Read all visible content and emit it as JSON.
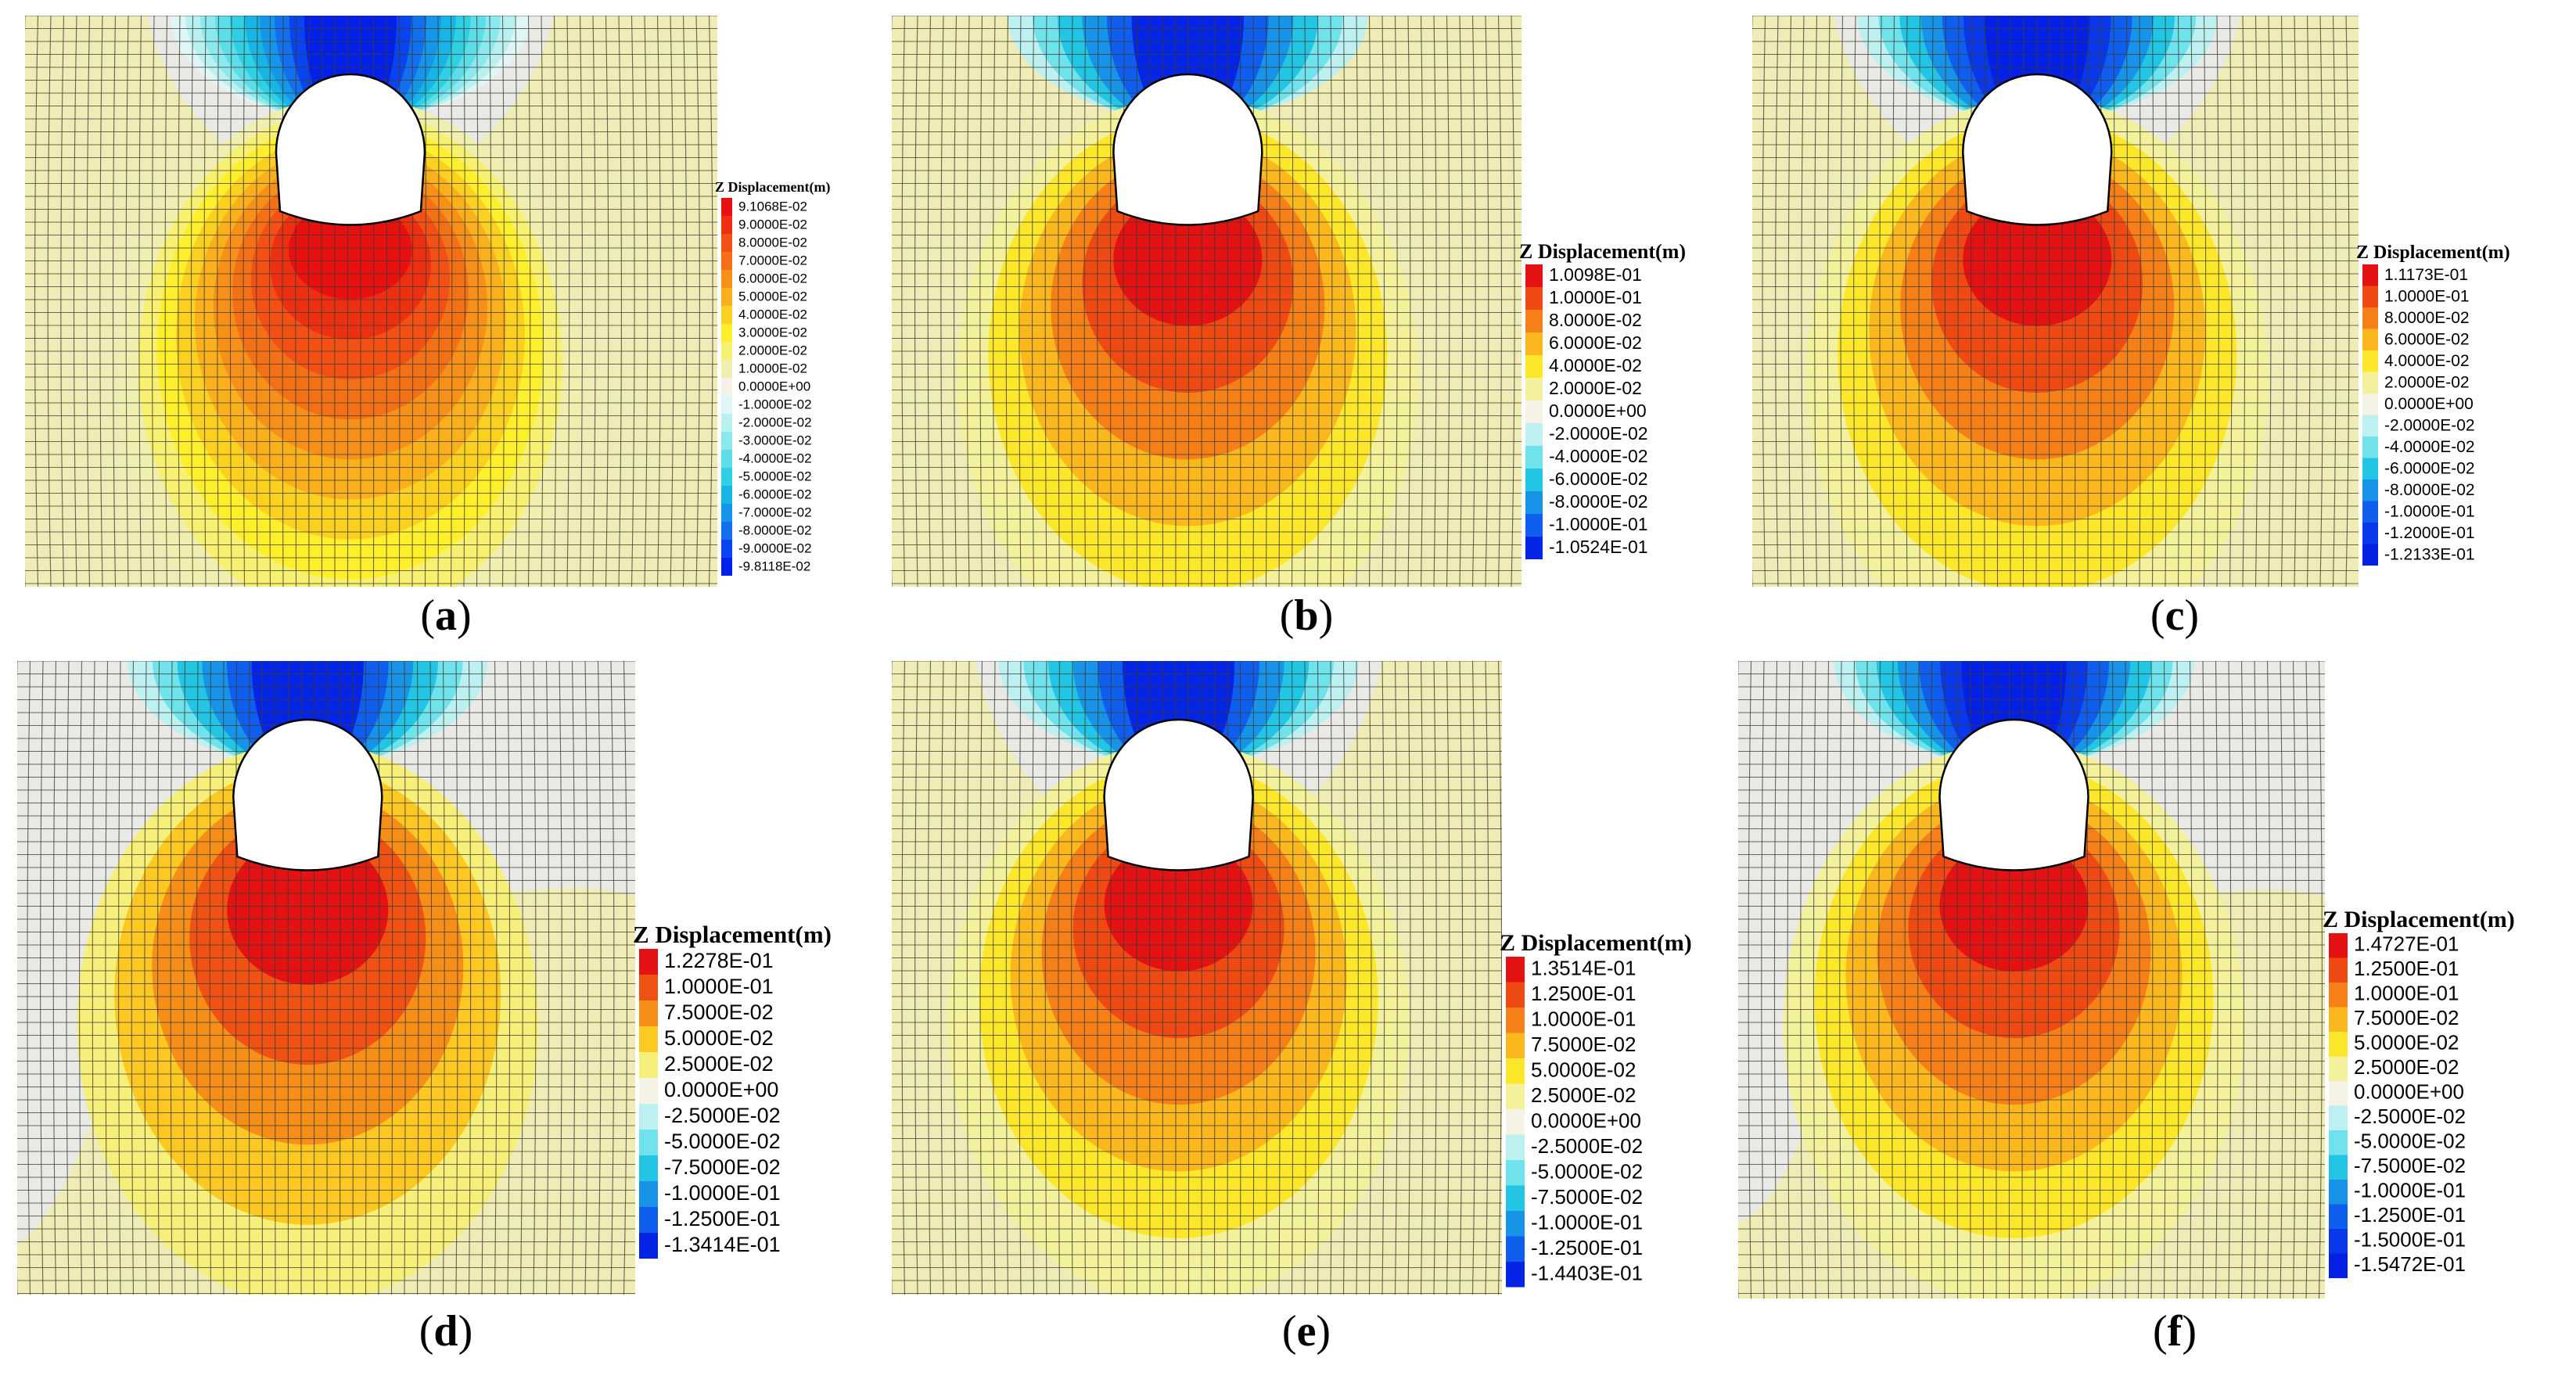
{
  "panels": [
    {
      "id": "a",
      "caption": "a",
      "legend_title": "Z Displacement(m)",
      "legend_labels": [
        "9.1068E-02",
        "9.0000E-02",
        "8.0000E-02",
        "7.0000E-02",
        "6.0000E-02",
        "5.0000E-02",
        "4.0000E-02",
        "3.0000E-02",
        "2.0000E-02",
        "1.0000E-02",
        "0.0000E+00",
        "-1.0000E-02",
        "-2.0000E-02",
        "-3.0000E-02",
        "-4.0000E-02",
        "-5.0000E-02",
        "-6.0000E-02",
        "-7.0000E-02",
        "-8.0000E-02",
        "-9.0000E-02",
        "-9.8118E-02"
      ],
      "legend_colors": [
        "#e81010",
        "#ee3012",
        "#f25014",
        "#f47016",
        "#f79018",
        "#f9b01c",
        "#fbd020",
        "#fdef2c",
        "#f7f070",
        "#f1efb0",
        "#f5f3e8",
        "#e0f6f6",
        "#b9f0f0",
        "#8be8ec",
        "#5ddde8",
        "#2fcfe4",
        "#17b4e4",
        "#1596e8",
        "#1270ec",
        "#0a44f0",
        "#0220e8"
      ]
    },
    {
      "id": "b",
      "caption": "b",
      "legend_title": "Z Displacement(m)",
      "legend_labels": [
        "1.0098E-01",
        "1.0000E-01",
        "8.0000E-02",
        "6.0000E-02",
        "4.0000E-02",
        "2.0000E-02",
        "0.0000E+00",
        "-2.0000E-02",
        "-4.0000E-02",
        "-6.0000E-02",
        "-8.0000E-02",
        "-1.0000E-01",
        "-1.0524E-01"
      ],
      "legend_colors": [
        "#e41212",
        "#ef4a14",
        "#f68018",
        "#fab81e",
        "#fde72a",
        "#f4f19c",
        "#f4f3e6",
        "#bdf1f1",
        "#6fe2ec",
        "#22c6e4",
        "#1794e8",
        "#0f5eee",
        "#0424e6"
      ]
    },
    {
      "id": "c",
      "caption": "c",
      "legend_title": "Z Displacement(m)",
      "legend_labels": [
        "1.1173E-01",
        "1.0000E-01",
        "8.0000E-02",
        "6.0000E-02",
        "4.0000E-02",
        "2.0000E-02",
        "0.0000E+00",
        "-2.0000E-02",
        "-4.0000E-02",
        "-6.0000E-02",
        "-8.0000E-02",
        "-1.0000E-01",
        "-1.2000E-01",
        "-1.2133E-01"
      ],
      "legend_colors": [
        "#e41212",
        "#ef4a14",
        "#f68018",
        "#fab81e",
        "#fde72a",
        "#f4f19c",
        "#f4f3e6",
        "#bdf1f1",
        "#6fe2ec",
        "#22c6e4",
        "#1794e8",
        "#0f5eee",
        "#0838ea",
        "#0420e4"
      ]
    },
    {
      "id": "d",
      "caption": "d",
      "legend_title": "Z Displacement(m)",
      "legend_labels": [
        "1.2278E-01",
        "1.0000E-01",
        "7.5000E-02",
        "5.0000E-02",
        "2.5000E-02",
        "0.0000E+00",
        "-2.5000E-02",
        "-5.0000E-02",
        "-7.5000E-02",
        "-1.0000E-01",
        "-1.2500E-01",
        "-1.3414E-01"
      ],
      "legend_colors": [
        "#e41212",
        "#f05214",
        "#f78e18",
        "#fcc822",
        "#f6f07a",
        "#f4f3e6",
        "#bdf1f1",
        "#6fe2ec",
        "#22c6e4",
        "#1794e8",
        "#0f5eee",
        "#0424e6"
      ]
    },
    {
      "id": "e",
      "caption": "e",
      "legend_title": "Z Displacement(m)",
      "legend_labels": [
        "1.3514E-01",
        "1.2500E-01",
        "1.0000E-01",
        "7.5000E-02",
        "5.0000E-02",
        "2.5000E-02",
        "0.0000E+00",
        "-2.5000E-02",
        "-5.0000E-02",
        "-7.5000E-02",
        "-1.0000E-01",
        "-1.2500E-01",
        "-1.4403E-01"
      ],
      "legend_colors": [
        "#e41212",
        "#ef4a14",
        "#f68018",
        "#fab81e",
        "#fde72a",
        "#f4f19c",
        "#f4f3e6",
        "#bdf1f1",
        "#6fe2ec",
        "#22c6e4",
        "#1794e8",
        "#0f5eee",
        "#0424e6"
      ]
    },
    {
      "id": "f",
      "caption": "f",
      "legend_title": "Z Displacement(m)",
      "legend_labels": [
        "1.4727E-01",
        "1.2500E-01",
        "1.0000E-01",
        "7.5000E-02",
        "5.0000E-02",
        "2.5000E-02",
        "0.0000E+00",
        "-2.5000E-02",
        "-5.0000E-02",
        "-7.5000E-02",
        "-1.0000E-01",
        "-1.2500E-01",
        "-1.5000E-01",
        "-1.5472E-01"
      ],
      "legend_colors": [
        "#e41212",
        "#ef4a14",
        "#f68018",
        "#fab81e",
        "#fde72a",
        "#f4f19c",
        "#f4f3e6",
        "#bdf1f1",
        "#6fe2ec",
        "#22c6e4",
        "#1794e8",
        "#0f5eee",
        "#0838ea",
        "#0420e4"
      ]
    }
  ],
  "colors": {
    "background_positive": "#efecb5",
    "background_neutral": "#e9e9e6",
    "mesh_line": "#3b3b30",
    "tunnel": "#ffffff"
  }
}
